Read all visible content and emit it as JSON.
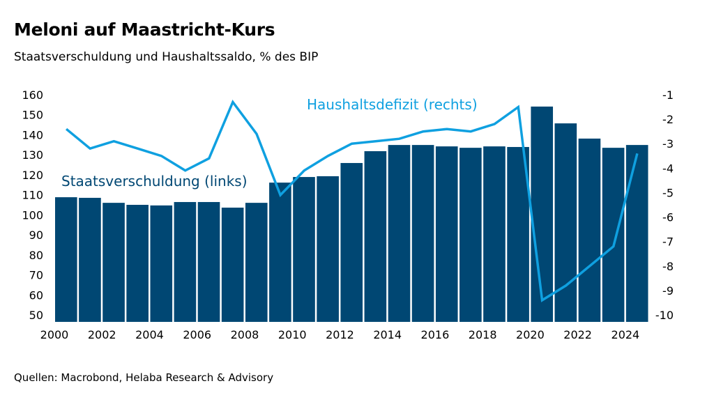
{
  "title": "Meloni auf Maastricht-Kurs",
  "subtitle": "Staatsverschuldung und Haushaltssaldo, % des BIP",
  "source": "Quellen: Macrobond, Helaba Research & Advisory",
  "colors": {
    "bars": "#004773",
    "line": "#0fa0e0"
  },
  "chart_data": {
    "type": "bar+line",
    "title": "Meloni auf Maastricht-Kurs",
    "subtitle": "Staatsverschuldung und Haushaltssaldo, % des BIP",
    "x": [
      2000,
      2001,
      2002,
      2003,
      2004,
      2005,
      2006,
      2007,
      2008,
      2009,
      2010,
      2011,
      2012,
      2013,
      2014,
      2015,
      2016,
      2017,
      2018,
      2019,
      2020,
      2021,
      2022,
      2023,
      2024
    ],
    "x_tick_labels": [
      "2000",
      "2002",
      "2004",
      "2006",
      "2008",
      "2010",
      "2012",
      "2014",
      "2016",
      "2018",
      "2020",
      "2022",
      "2024"
    ],
    "left_axis": {
      "ylim": [
        46.5,
        160
      ],
      "ticks": [
        "160",
        "150",
        "140",
        "130",
        "120",
        "110",
        "100",
        "90",
        "80",
        "70",
        "60",
        "50"
      ]
    },
    "right_axis": {
      "ylim": [
        -10.3,
        -1
      ],
      "ticks": [
        "-1",
        "-2",
        "-3",
        "-4",
        "-5",
        "-6",
        "-7",
        "-8",
        "-9",
        "-10"
      ]
    },
    "series": [
      {
        "name": "Staatsverschuldung (links)",
        "type": "bar",
        "axis": "left",
        "values": [
          108.8,
          108.5,
          106.0,
          105.0,
          104.7,
          106.4,
          106.4,
          103.6,
          106.0,
          116.1,
          118.9,
          119.3,
          125.9,
          131.8,
          134.9,
          134.9,
          134.2,
          133.5,
          134.2,
          133.9,
          154.1,
          145.7,
          138.1,
          133.5,
          134.9
        ]
      },
      {
        "name": "Haushaltsdefizit (rechts)",
        "type": "line",
        "axis": "right",
        "values": [
          -2.4,
          -3.2,
          -2.9,
          -3.2,
          -3.5,
          -4.1,
          -3.6,
          -1.3,
          -2.6,
          -5.1,
          -4.1,
          -3.5,
          -3.0,
          -2.9,
          -2.8,
          -2.5,
          -2.4,
          -2.5,
          -2.2,
          -1.5,
          -9.4,
          -8.8,
          -8.0,
          -7.2,
          -3.4
        ]
      }
    ],
    "grid": false
  }
}
